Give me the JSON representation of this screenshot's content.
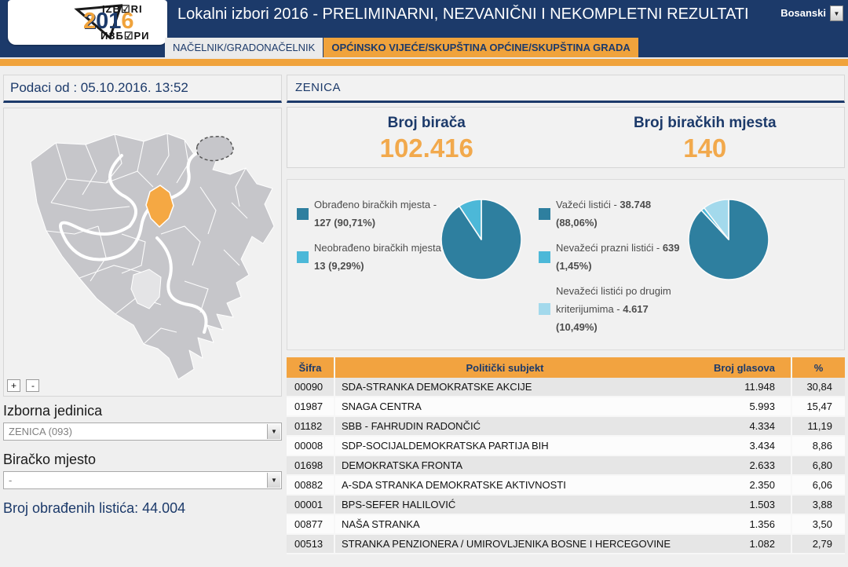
{
  "colors": {
    "navy": "#1c3a6a",
    "accent_orange": "#f0a33c",
    "number_orange": "#f2a94c",
    "table_header_orange": "#f2a340",
    "pie_dark_teal": "#2e7f9f",
    "pie_mid_cyan": "#4cb8d8",
    "pie_light_blue": "#a3d9ec"
  },
  "header": {
    "title": "Lokalni izbori 2016 - PRELIMINARNI, NEZVANIČNI I NEKOMPLETNI REZULTATI",
    "language_selected": "Bosanski",
    "language_arrow_icon": "▼",
    "logo": {
      "top_text": "IZB☑RI",
      "year": "2016",
      "bottom_text": "ИЗБ☑РИ"
    }
  },
  "tabs": [
    {
      "label": "NAČELNIK/GRADONAČELNIK",
      "active": false
    },
    {
      "label": "OPĆINSKO VIJEĆE/SKUPŠTINA OPĆINE/SKUPŠTINA GRADA",
      "active": true
    }
  ],
  "sidebar": {
    "data_timestamp": "Podaci od : 05.10.2016. 13:52",
    "zoom_in_label": "+",
    "zoom_out_label": "-",
    "election_unit_label": "Izborna jedinica",
    "election_unit_value": "ZENICA (093)",
    "polling_station_label": "Biračko mjesto",
    "polling_station_value": "-",
    "select_arrow_icon": "▼",
    "processed_ballots_label": "Broj obrađenih listića:",
    "processed_ballots_value": "44.004"
  },
  "main": {
    "municipality": "ZENICA",
    "stats": [
      {
        "label": "Broj birača",
        "value": "102.416"
      },
      {
        "label": "Broj biračkih mjesta",
        "value": "140"
      }
    ]
  },
  "chart_data": [
    {
      "type": "pie",
      "labels": [
        "Obrađeno biračkih mjesta",
        "Neobrađeno biračkih mjesta"
      ],
      "values": [
        127,
        13
      ],
      "value_labels": [
        "127",
        "13"
      ],
      "percents": [
        90.71,
        9.29
      ],
      "percent_labels": [
        "90,71%",
        "9,29%"
      ],
      "colors": [
        "#2e7f9f",
        "#4cb8d8"
      ],
      "legend_position": "left"
    },
    {
      "type": "pie",
      "labels": [
        "Važeći listići",
        "Nevažeći prazni listići",
        "Nevažeći listići po drugim kriterijumima"
      ],
      "values": [
        38748,
        639,
        4617
      ],
      "value_labels": [
        "38.748",
        "639",
        "4.617"
      ],
      "percents": [
        88.06,
        1.45,
        10.49
      ],
      "percent_labels": [
        "88,06%",
        "1,45%",
        "10,49%"
      ],
      "colors": [
        "#2e7f9f",
        "#4cb8d8",
        "#a3d9ec"
      ],
      "legend_position": "left"
    }
  ],
  "table": {
    "columns": [
      "Šifra",
      "Politički subjekt",
      "Broj glasova",
      "%"
    ],
    "rows": [
      [
        "00090",
        "SDA-STRANKA DEMOKRATSKE AKCIJE",
        "11.948",
        "30,84"
      ],
      [
        "01987",
        "SNAGA CENTRA",
        "5.993",
        "15,47"
      ],
      [
        "01182",
        "SBB - FAHRUDIN RADONČIĆ",
        "4.334",
        "11,19"
      ],
      [
        "00008",
        "SDP-SOCIJALDEMOKRATSKA PARTIJA BIH",
        "3.434",
        "8,86"
      ],
      [
        "01698",
        "DEMOKRATSKA FRONTA",
        "2.633",
        "6,80"
      ],
      [
        "00882",
        "A-SDA STRANKA DEMOKRATSKE AKTIVNOSTI",
        "2.350",
        "6,06"
      ],
      [
        "00001",
        "BPS-SEFER HALILOVIĆ",
        "1.503",
        "3,88"
      ],
      [
        "00877",
        "NAŠA STRANKA",
        "1.356",
        "3,50"
      ],
      [
        "00513",
        "STRANKA PENZIONERA / UMIROVLJENIKA BOSNE I HERCEGOVINE",
        "1.082",
        "2,79"
      ]
    ]
  }
}
